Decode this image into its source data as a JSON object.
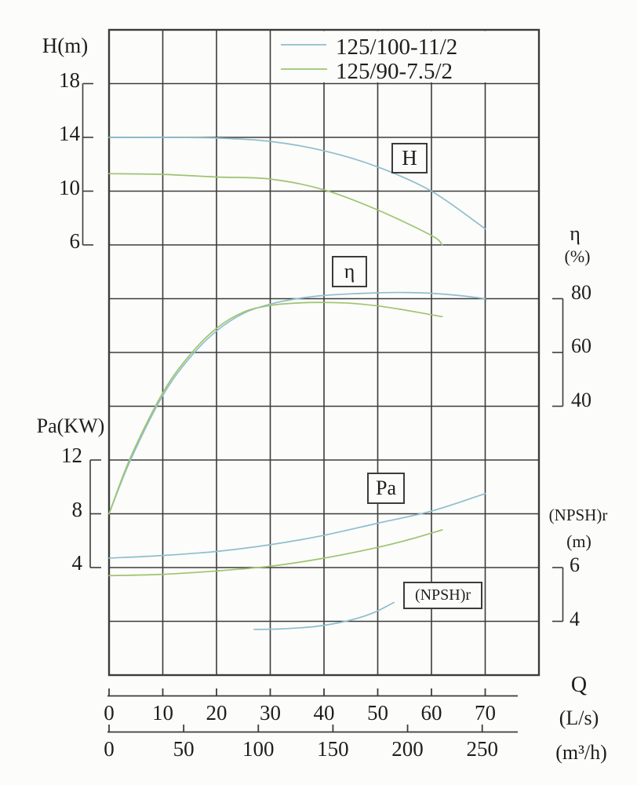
{
  "colors": {
    "blue": "#8fbecd",
    "green": "#9ec470",
    "grid": "#3c3c3c",
    "text": "#1e1e1e",
    "background": "#fcfcfa"
  },
  "legend": {
    "series": [
      {
        "label": "125/100-11/2",
        "color_key": "blue"
      },
      {
        "label": "125/90-7.5/2",
        "color_key": "green"
      }
    ]
  },
  "axes": {
    "h": {
      "title": "H(m)",
      "ticks": [
        18,
        14,
        10,
        6
      ],
      "side": "left"
    },
    "pa": {
      "title": "Pa(KW)",
      "ticks": [
        12,
        8,
        4
      ],
      "side": "left"
    },
    "eta": {
      "title": "η",
      "unit": "(%)",
      "ticks": [
        80,
        60,
        40
      ],
      "side": "right"
    },
    "npsh": {
      "title": "(NPSH)r",
      "unit": "(m)",
      "ticks": [
        6,
        4
      ],
      "side": "right"
    },
    "q": {
      "title": "Q",
      "ls": {
        "unit": "(L/s)",
        "ticks": [
          0,
          10,
          20,
          30,
          40,
          50,
          60,
          70
        ]
      },
      "m3h": {
        "unit": "(m³/h)",
        "ticks": [
          0,
          50,
          100,
          150,
          200,
          250
        ]
      }
    }
  },
  "curve_labels": {
    "h": "H",
    "eta": "η",
    "pa": "Pa",
    "npsh": "(NPSH)r"
  },
  "chart_data": {
    "type": "line",
    "title": "",
    "x_axis": {
      "label": "Q",
      "units": [
        {
          "label": "(L/s)",
          "ticks": [
            0,
            10,
            20,
            30,
            40,
            50,
            60,
            70
          ],
          "range": [
            0,
            80
          ]
        },
        {
          "label": "(m³/h)",
          "ticks": [
            0,
            50,
            100,
            150,
            200,
            250
          ],
          "range": [
            0,
            288
          ]
        }
      ]
    },
    "y_axes": [
      {
        "id": "H",
        "label": "H(m)",
        "ticks": [
          18,
          14,
          10,
          6
        ],
        "units": "m",
        "side": "left"
      },
      {
        "id": "eta",
        "label": "η (%)",
        "ticks": [
          80,
          60,
          40
        ],
        "units": "%",
        "side": "right"
      },
      {
        "id": "Pa",
        "label": "Pa(KW)",
        "ticks": [
          12,
          8,
          4
        ],
        "units": "KW",
        "side": "left"
      },
      {
        "id": "NPSH",
        "label": "(NPSH)r (m)",
        "ticks": [
          6,
          4
        ],
        "units": "m",
        "side": "right"
      }
    ],
    "grid": true,
    "legend_position": "top-right",
    "series": [
      {
        "pump": "125/100-11/2",
        "quantity": "H",
        "color_key": "blue",
        "points_q_ls_vs_value": [
          [
            0,
            14
          ],
          [
            10,
            14
          ],
          [
            20,
            13.95
          ],
          [
            30,
            13.7
          ],
          [
            40,
            13.0
          ],
          [
            50,
            11.8
          ],
          [
            60,
            10.0
          ],
          [
            70,
            7.2
          ]
        ]
      },
      {
        "pump": "125/90-7.5/2",
        "quantity": "H",
        "color_key": "green",
        "points_q_ls_vs_value": [
          [
            0,
            11.3
          ],
          [
            10,
            11.25
          ],
          [
            20,
            11.05
          ],
          [
            30,
            10.9
          ],
          [
            40,
            10.1
          ],
          [
            50,
            8.6
          ],
          [
            60,
            6.7
          ],
          [
            62,
            6.0
          ]
        ]
      },
      {
        "pump": "125/100-11/2",
        "quantity": "eta",
        "color_key": "blue",
        "points_q_ls_vs_value": [
          [
            0,
            0
          ],
          [
            4,
            20
          ],
          [
            10,
            44
          ],
          [
            15,
            58
          ],
          [
            20,
            68
          ],
          [
            25,
            74.5
          ],
          [
            30,
            78
          ],
          [
            35,
            80
          ],
          [
            40,
            81.2
          ],
          [
            45,
            81.8
          ],
          [
            50,
            82.2
          ],
          [
            55,
            82.3
          ],
          [
            60,
            82
          ],
          [
            65,
            81.2
          ],
          [
            70,
            80
          ]
        ]
      },
      {
        "pump": "125/90-7.5/2",
        "quantity": "eta",
        "color_key": "green",
        "points_q_ls_vs_value": [
          [
            0,
            0
          ],
          [
            4,
            21
          ],
          [
            10,
            45
          ],
          [
            15,
            59
          ],
          [
            20,
            69
          ],
          [
            25,
            75
          ],
          [
            30,
            77.5
          ],
          [
            35,
            78.4
          ],
          [
            40,
            78.6
          ],
          [
            45,
            78.3
          ],
          [
            50,
            77.3
          ],
          [
            55,
            75.8
          ],
          [
            62,
            73.3
          ]
        ]
      },
      {
        "pump": "125/100-11/2",
        "quantity": "Pa",
        "color_key": "blue",
        "points_q_ls_vs_value": [
          [
            0,
            4.7
          ],
          [
            10,
            4.9
          ],
          [
            20,
            5.2
          ],
          [
            30,
            5.7
          ],
          [
            40,
            6.4
          ],
          [
            50,
            7.3
          ],
          [
            60,
            8.2
          ],
          [
            70,
            9.5
          ]
        ]
      },
      {
        "pump": "125/90-7.5/2",
        "quantity": "Pa",
        "color_key": "green",
        "points_q_ls_vs_value": [
          [
            0,
            3.4
          ],
          [
            10,
            3.5
          ],
          [
            20,
            3.75
          ],
          [
            30,
            4.1
          ],
          [
            40,
            4.7
          ],
          [
            50,
            5.5
          ],
          [
            56,
            6.1
          ],
          [
            62,
            6.8
          ]
        ]
      },
      {
        "pump": "125/100-11/2",
        "quantity": "NPSH",
        "color_key": "blue",
        "points_q_ls_vs_value": [
          [
            27,
            3.7
          ],
          [
            32,
            3.72
          ],
          [
            38,
            3.8
          ],
          [
            44,
            4.0
          ],
          [
            49,
            4.3
          ],
          [
            53,
            4.7
          ]
        ]
      }
    ]
  }
}
